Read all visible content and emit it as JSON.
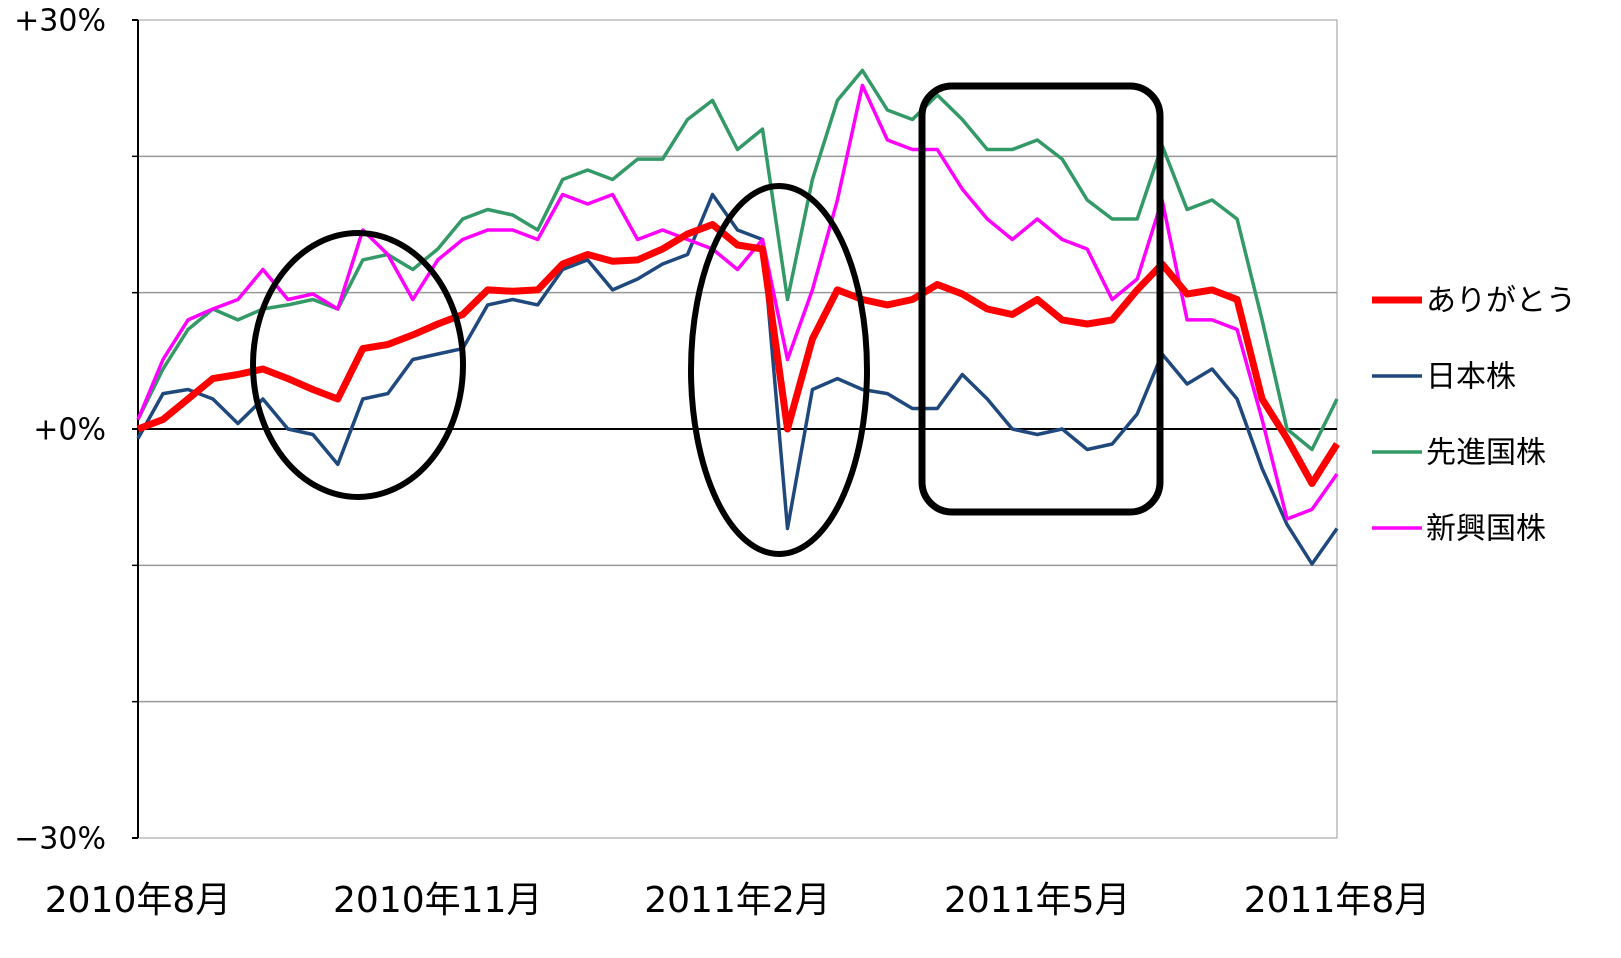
{
  "chart_data": {
    "type": "line",
    "x": [
      0,
      0.25,
      0.5,
      0.75,
      1,
      1.25,
      1.5,
      1.75,
      2,
      2.25,
      2.5,
      2.75,
      3,
      3.25,
      3.5,
      3.75,
      4,
      4.25,
      4.5,
      4.75,
      5,
      5.25,
      5.5,
      5.75,
      6,
      6.25,
      6.5,
      6.75,
      7,
      7.25,
      7.5,
      7.75,
      8,
      8.25,
      8.5,
      8.75,
      9,
      9.25,
      9.5,
      9.75,
      10,
      10.25,
      10.5,
      10.75,
      11,
      11.25,
      11.5,
      11.75,
      12
    ],
    "xlim": [
      0,
      12
    ],
    "xticks": [
      {
        "value": 0,
        "label": "2010年8月"
      },
      {
        "value": 3,
        "label": "2010年11月"
      },
      {
        "value": 6,
        "label": "2011年2月"
      },
      {
        "value": 9,
        "label": "2011年5月"
      },
      {
        "value": 12,
        "label": "2011年8月"
      }
    ],
    "ylim": [
      -30,
      30
    ],
    "yticks": [
      {
        "value": 30,
        "label": "+30%"
      },
      {
        "value": 0,
        "label": "+0%"
      },
      {
        "value": -30,
        "label": "−30%"
      }
    ],
    "ygrid": [
      -20,
      -10,
      10,
      20
    ],
    "grid": true,
    "legend": "right",
    "series": [
      {
        "name": "ありがとう",
        "color": "#ff0000",
        "values": [
          0,
          0.7,
          2.2,
          3.7,
          4,
          4.4,
          3.7,
          2.9,
          2.2,
          5.9,
          6.2,
          6.9,
          7.7,
          8.4,
          10.2,
          10.1,
          10.2,
          12.1,
          12.8,
          12.3,
          12.4,
          13.2,
          14.3,
          15,
          13.5,
          13.2,
          0,
          6.6,
          10.2,
          9.5,
          9.1,
          9.5,
          10.6,
          9.9,
          8.8,
          8.4,
          9.5,
          8,
          7.7,
          8,
          10.2,
          12.1,
          9.9,
          10.2,
          9.5,
          2.2,
          -0.7,
          -4,
          -1.1
        ]
      },
      {
        "name": "日本株",
        "color": "#1f497d",
        "values": [
          -0.7,
          2.6,
          2.9,
          2.2,
          0.4,
          2.2,
          0,
          -0.4,
          -2.6,
          2.2,
          2.6,
          5.1,
          5.5,
          5.9,
          9.1,
          9.5,
          9.1,
          11.7,
          12.4,
          10.2,
          11,
          12.1,
          12.8,
          17.2,
          14.6,
          13.9,
          -7.3,
          2.9,
          3.7,
          2.9,
          2.6,
          1.5,
          1.5,
          4,
          2.2,
          0,
          -0.4,
          0,
          -1.5,
          -1.1,
          1.1,
          5.5,
          3.3,
          4.4,
          2.2,
          -2.9,
          -7,
          -9.9,
          -7.3
        ]
      },
      {
        "name": "先進国株",
        "color": "#339966",
        "values": [
          0.7,
          4.4,
          7.3,
          8.8,
          8,
          8.8,
          9.1,
          9.5,
          8.8,
          12.4,
          12.8,
          11.7,
          13.2,
          15.4,
          16.1,
          15.7,
          14.6,
          18.3,
          19,
          18.3,
          19.8,
          19.8,
          22.7,
          24.1,
          20.5,
          22,
          9.5,
          18.3,
          24.1,
          26.3,
          23.4,
          22.7,
          24.5,
          22.7,
          20.5,
          20.5,
          21.2,
          19.8,
          16.8,
          15.4,
          15.4,
          20.8,
          16.1,
          16.8,
          15.4,
          8,
          0,
          -1.5,
          2.2
        ]
      },
      {
        "name": "新興国株",
        "color": "#ff00ff",
        "values": [
          0.7,
          5.1,
          8,
          8.8,
          9.5,
          11.7,
          9.5,
          9.9,
          8.8,
          14.6,
          12.8,
          9.5,
          12.4,
          13.9,
          14.6,
          14.6,
          13.9,
          17.2,
          16.5,
          17.2,
          13.9,
          14.6,
          13.9,
          13.2,
          11.7,
          13.9,
          5.1,
          10.2,
          16.8,
          25.2,
          21.2,
          20.5,
          20.5,
          17.6,
          15.4,
          13.9,
          15.4,
          13.9,
          13.2,
          9.5,
          11,
          16.8,
          8,
          8,
          7.3,
          0.7,
          -6.6,
          -5.9,
          -3.3
        ]
      }
    ]
  }
}
